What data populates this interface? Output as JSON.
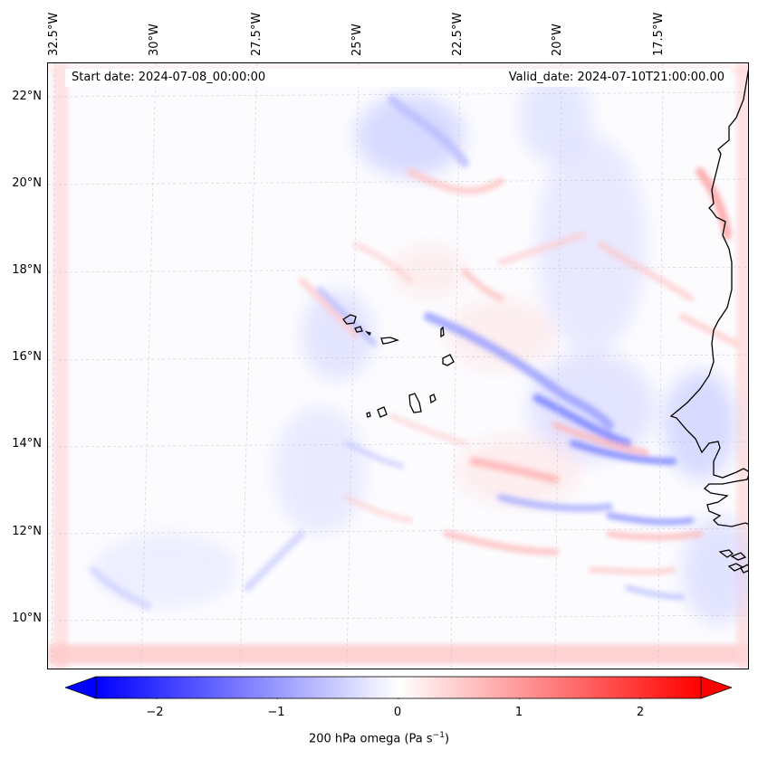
{
  "map": {
    "start_date": "Start date: 2024-07-08_00:00:00",
    "valid_date": "Valid_date: 2024-07-10T21:00:00.00",
    "lon_labels": [
      "32.5°W",
      "30°W",
      "27.5°W",
      "25°W",
      "22.5°W",
      "20°W",
      "17.5°W"
    ],
    "lat_labels": [
      "22°N",
      "20°N",
      "18°N",
      "16°N",
      "14°N",
      "12°N",
      "10°N"
    ],
    "extent": {
      "lon_min": -32.6,
      "lon_max": -15.2,
      "lat_min": 8.8,
      "lat_max": 22.8
    },
    "field": "200 hPa vertical velocity (omega)"
  },
  "colorbar": {
    "ticks": [
      "−2",
      "−1",
      "0",
      "1",
      "2"
    ],
    "tick_values": [
      -2,
      -1,
      0,
      1,
      2
    ],
    "range": [
      -2.5,
      2.5
    ],
    "label_prefix": "200 hPa omega (Pa s",
    "label_exp": "−1",
    "label_suffix": ")",
    "colors": {
      "negative": "#0000ff",
      "zero": "#ffffff",
      "positive": "#ff0000"
    }
  }
}
